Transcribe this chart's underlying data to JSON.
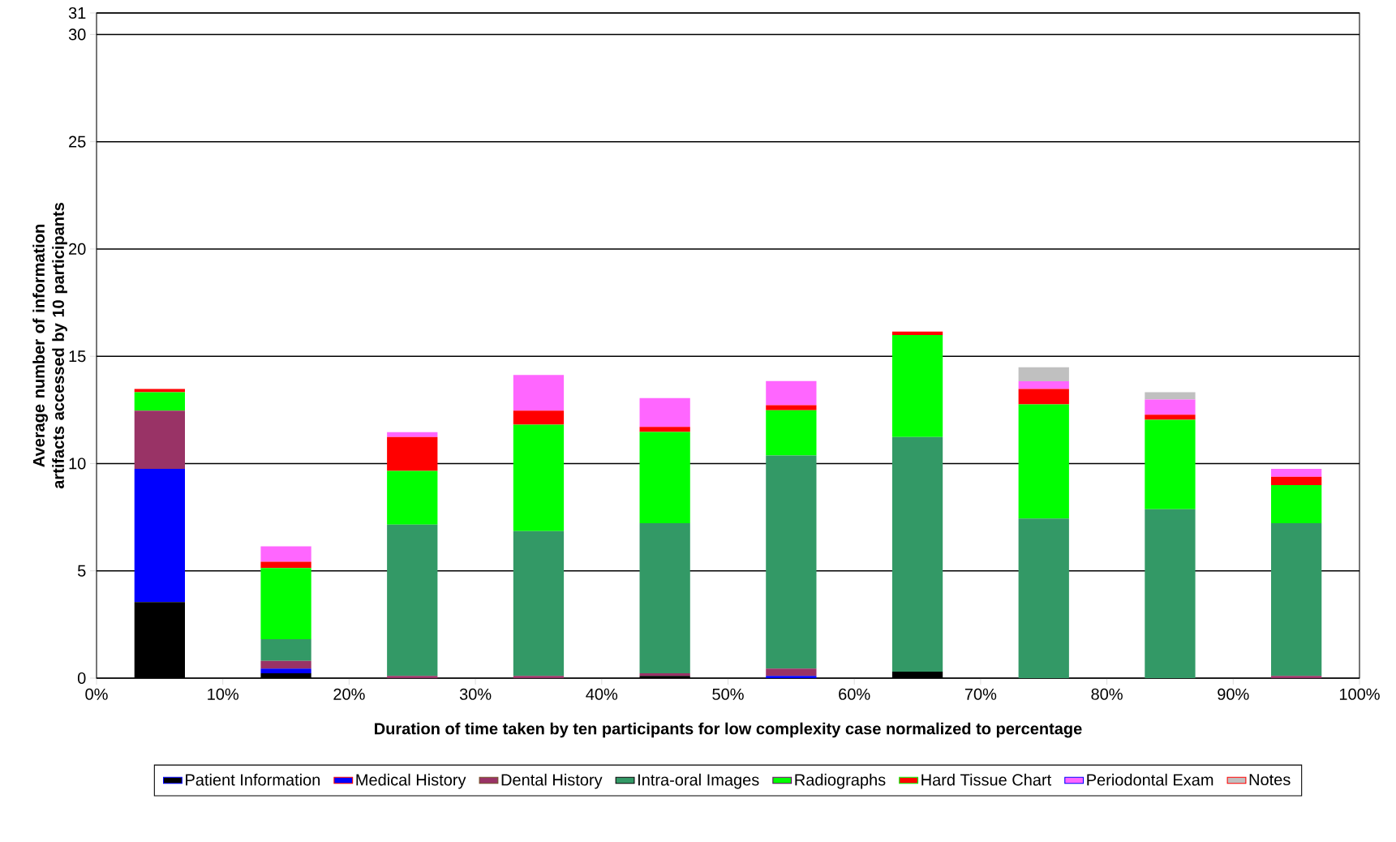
{
  "chart_data": {
    "type": "bar",
    "stacked": true,
    "xlabel": "Duration of time taken by ten participants for low complexity case normalized to percentage",
    "ylabel": "Average number of information artifacts accessed by 10 participants",
    "x": [
      5,
      15,
      25,
      35,
      45,
      55,
      65,
      75,
      85,
      95
    ],
    "xlim": [
      0,
      100
    ],
    "xticks": [
      {
        "value": 0,
        "label": "0%"
      },
      {
        "value": 10,
        "label": "10%"
      },
      {
        "value": 20,
        "label": "20%"
      },
      {
        "value": 30,
        "label": "30%"
      },
      {
        "value": 40,
        "label": "40%"
      },
      {
        "value": 50,
        "label": "50%"
      },
      {
        "value": 60,
        "label": "60%"
      },
      {
        "value": 70,
        "label": "70%"
      },
      {
        "value": 80,
        "label": "80%"
      },
      {
        "value": 90,
        "label": "90%"
      },
      {
        "value": 100,
        "label": "100%"
      }
    ],
    "ylim": [
      0,
      31
    ],
    "yticks": [
      0,
      5,
      10,
      15,
      20,
      25,
      30,
      31
    ],
    "grid": "y",
    "legend": "bottom",
    "series": [
      {
        "name": "Patient Information",
        "color": "#000000",
        "values": [
          3.54,
          0.23,
          0,
          0,
          0.1,
          0,
          0.3,
          0,
          0,
          0
        ]
      },
      {
        "name": "Medical History",
        "color": "#0000ff",
        "values": [
          6.21,
          0.21,
          0,
          0,
          0,
          0.1,
          0,
          0,
          0,
          0
        ]
      },
      {
        "name": "Dental History",
        "color": "#993366",
        "values": [
          2.72,
          0.36,
          0.1,
          0.1,
          0.13,
          0.34,
          0,
          0,
          0,
          0.1
        ]
      },
      {
        "name": "Intra-oral Images",
        "color": "#339966",
        "values": [
          0,
          1.01,
          7.05,
          6.75,
          6.99,
          9.94,
          10.94,
          7.44,
          7.87,
          7.12
        ]
      },
      {
        "name": "Radiographs",
        "color": "#00ff00",
        "values": [
          0.86,
          3.32,
          2.51,
          4.96,
          4.25,
          2.1,
          4.75,
          5.32,
          4.17,
          1.78
        ]
      },
      {
        "name": "Hard Tissue Chart",
        "color": "#ff0000",
        "values": [
          0.15,
          0.29,
          1.58,
          0.66,
          0.24,
          0.24,
          0.16,
          0.72,
          0.24,
          0.38
        ]
      },
      {
        "name": "Periodontal Exam",
        "color": "#ff66ff",
        "values": [
          0,
          0.72,
          0.22,
          1.66,
          1.34,
          1.13,
          0,
          0.36,
          0.71,
          0.37
        ]
      },
      {
        "name": "Notes",
        "color": "#c0c0c0",
        "values": [
          0,
          0,
          0,
          0,
          0,
          0,
          0,
          0.65,
          0.34,
          0
        ]
      }
    ]
  }
}
